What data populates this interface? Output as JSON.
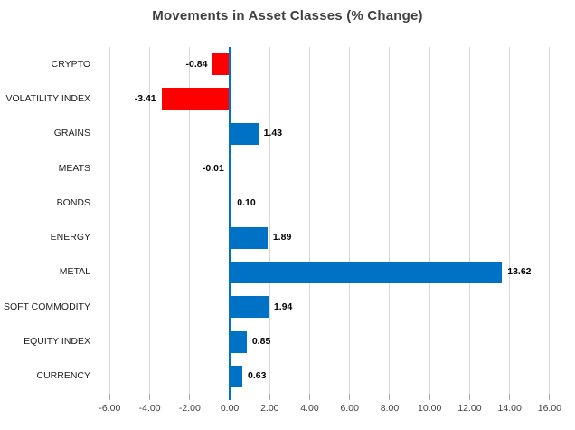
{
  "chart_data": {
    "type": "bar",
    "orientation": "horizontal",
    "title": "Movements in Asset Classes (% Change)",
    "categories": [
      "CRYPTO",
      "VOLATILITY INDEX",
      "GRAINS",
      "MEATS",
      "BONDS",
      "ENERGY",
      "METAL",
      "SOFT COMMODITY",
      "EQUITY INDEX",
      "CURRENCY"
    ],
    "values": [
      -0.84,
      -3.41,
      1.43,
      -0.01,
      0.1,
      1.89,
      13.62,
      1.94,
      0.85,
      0.63
    ],
    "value_labels": [
      "-0.84",
      "-3.41",
      "1.43",
      "-0.01",
      "0.10",
      "1.89",
      "13.62",
      "1.94",
      "0.85",
      "0.63"
    ],
    "x_tick_labels": [
      "-6.00",
      "-4.00",
      "-2.00",
      "0.00",
      "2.00",
      "4.00",
      "6.00",
      "8.00",
      "10.00",
      "12.00",
      "14.00",
      "16.00"
    ],
    "x_tick_values": [
      -6,
      -4,
      -2,
      0,
      2,
      4,
      6,
      8,
      10,
      12,
      14,
      16
    ],
    "xlim": [
      -6.65,
      17.0
    ],
    "grid": "vertical",
    "legend": "none",
    "colors": {
      "positive": "#0072C6",
      "negative": "#FF0000",
      "axis_zero": "#0072C6",
      "gridline": "#D9D9D9",
      "tick": "#A6A6A6",
      "title": "#3F3F3F",
      "category_label": "#1F1F1F",
      "value_label": "#000000",
      "background": "#FFFFFF"
    }
  }
}
